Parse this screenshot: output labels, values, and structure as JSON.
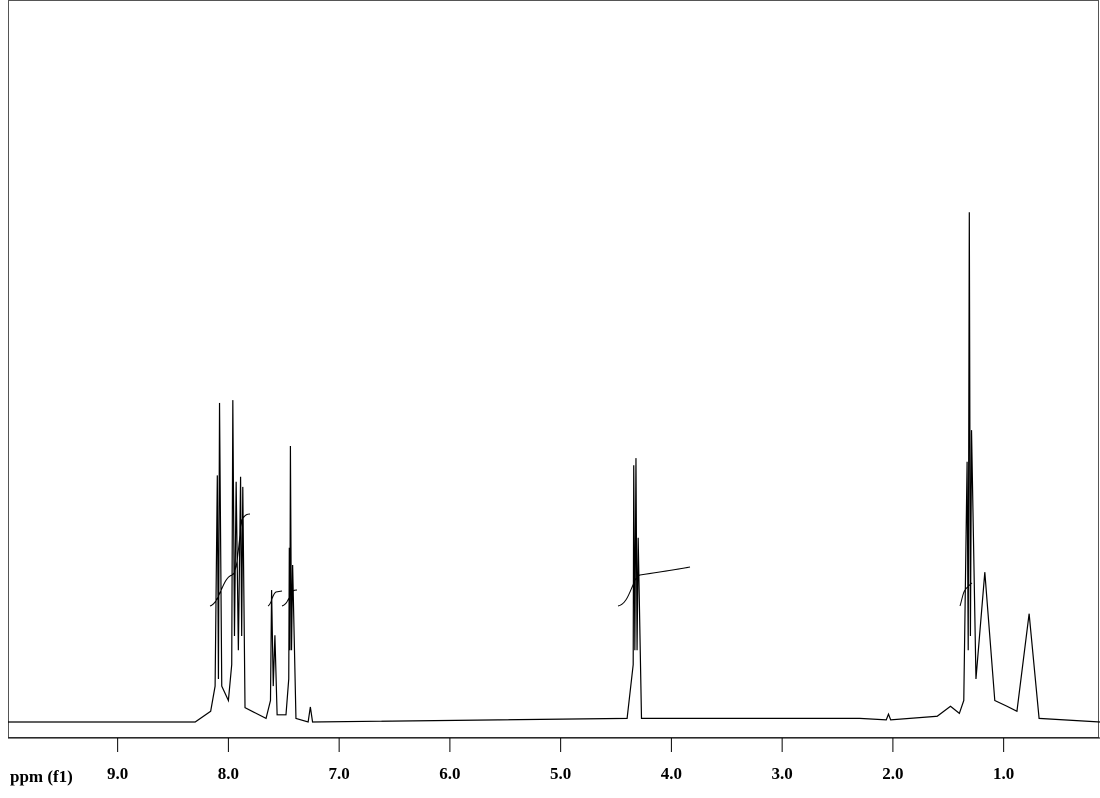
{
  "chart_data": {
    "type": "line",
    "x_label": "ppm (f1)",
    "xlim": [
      9.99,
      0.13
    ],
    "ylim": [
      0,
      100
    ],
    "xticks": [
      {
        "value": 9,
        "label": "9.0"
      },
      {
        "value": 8,
        "label": "8.0"
      },
      {
        "value": 7,
        "label": "7.0"
      },
      {
        "value": 6,
        "label": "6.0"
      },
      {
        "value": 5,
        "label": "5.0"
      },
      {
        "value": 4,
        "label": "4.0"
      },
      {
        "value": 3,
        "label": "3.0"
      },
      {
        "value": 2,
        "label": "2.0"
      },
      {
        "value": 1,
        "label": "1.0"
      }
    ],
    "color": "#000000",
    "x": [
      9.99,
      8.3,
      8.16,
      8.12,
      8.1,
      8.09,
      8.08,
      8.06,
      8.0,
      7.97,
      7.96,
      7.945,
      7.93,
      7.91,
      7.89,
      7.88,
      7.87,
      7.85,
      7.66,
      7.62,
      7.61,
      7.595,
      7.58,
      7.56,
      7.48,
      7.455,
      7.45,
      7.445,
      7.44,
      7.43,
      7.42,
      7.39,
      7.28,
      7.26,
      7.24,
      4.4,
      4.345,
      4.34,
      4.33,
      4.32,
      4.31,
      4.3,
      4.27,
      2.3,
      2.06,
      2.04,
      2.02,
      1.6,
      1.48,
      1.4,
      1.36,
      1.33,
      1.32,
      1.31,
      1.3,
      1.29,
      1.25,
      1.17,
      1.08,
      0.97,
      0.88,
      0.77,
      0.68,
      0.13
    ],
    "values": [
      0,
      0,
      1.5,
      5,
      34.4,
      6,
      44.5,
      5,
      3,
      8,
      44.9,
      12,
      33.5,
      10,
      34.2,
      12,
      32.8,
      2,
      0.5,
      3,
      18.4,
      5,
      12.1,
      1,
      1,
      6,
      24.3,
      10,
      38.5,
      10,
      21.9,
      0.5,
      0,
      2.1,
      0,
      0.5,
      8,
      35.8,
      10,
      36.8,
      10,
      25.7,
      0.5,
      0.5,
      0.3,
      1.1,
      0.3,
      0.8,
      2.2,
      1.2,
      3,
      36.3,
      10,
      71.1,
      12,
      40.7,
      6,
      20.9,
      3,
      2.2,
      1.5,
      15.1,
      0.5,
      0
    ]
  }
}
